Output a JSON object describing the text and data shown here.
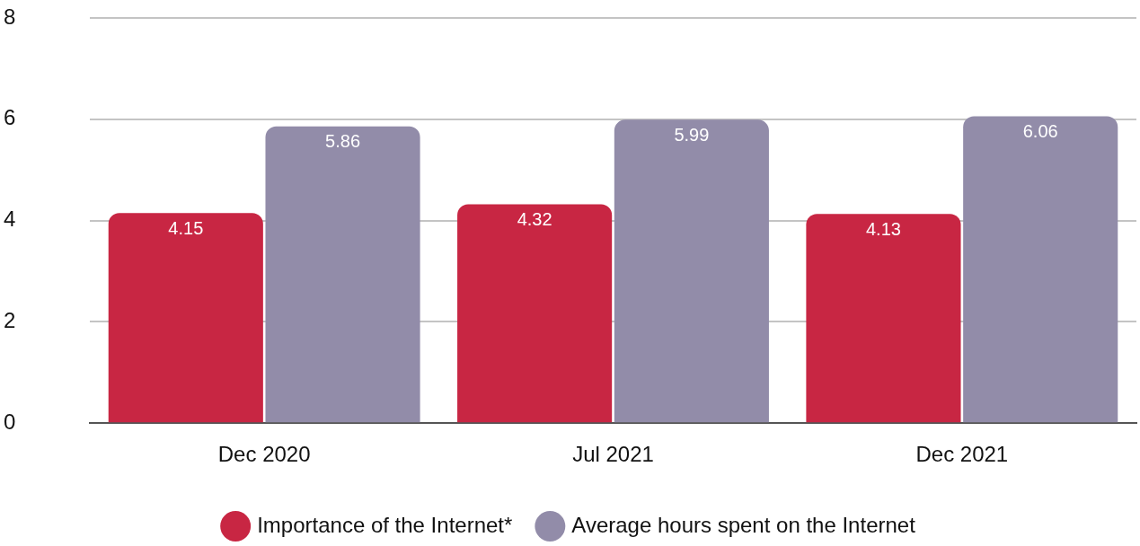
{
  "chart_data": {
    "type": "bar",
    "categories": [
      "Dec 2020",
      "Jul 2021",
      "Dec 2021"
    ],
    "series": [
      {
        "name": "Importance of the Internet*",
        "color": "#c82643",
        "values": [
          4.15,
          4.32,
          4.13
        ]
      },
      {
        "name": "Average hours spent on the Internet",
        "color": "#928ca9",
        "values": [
          5.86,
          5.99,
          6.06
        ]
      }
    ],
    "ylim": [
      0,
      8
    ],
    "yticks": [
      0,
      2,
      4,
      6,
      8
    ],
    "grid": "y",
    "legend": "bottom",
    "data_labels": true
  }
}
